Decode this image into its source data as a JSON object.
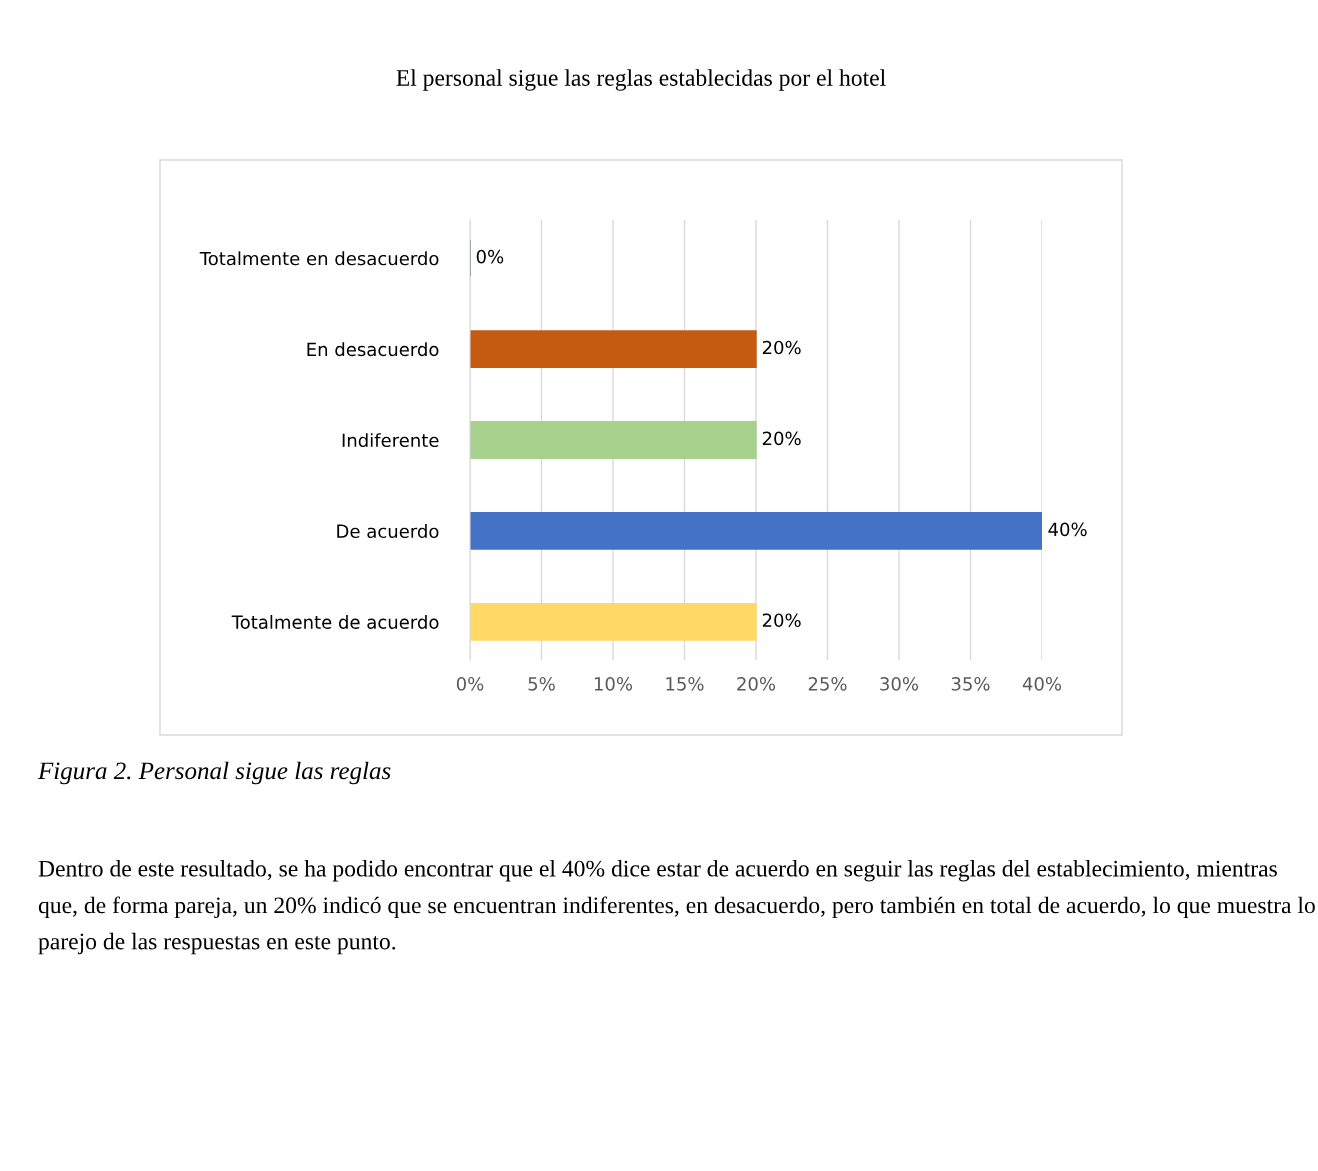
{
  "chart_data": {
    "type": "bar",
    "orientation": "horizontal",
    "title": "El personal sigue las reglas establecidas por el hotel",
    "categories": [
      "Totalmente en desacuerdo",
      "En desacuerdo",
      "Indiferente",
      "De acuerdo",
      "Totalmente de acuerdo"
    ],
    "values": [
      0,
      20,
      20,
      40,
      20
    ],
    "colors": [
      "#1f2d4d",
      "#c55a11",
      "#a9d18e",
      "#4472c4",
      "#ffd966"
    ],
    "value_labels": [
      "0%",
      "20%",
      "20%",
      "40%",
      "20%"
    ],
    "xlim": [
      0,
      40
    ],
    "xticks": [
      {
        "value": 0,
        "label": "0%"
      },
      {
        "value": 5,
        "label": "5%"
      },
      {
        "value": 10,
        "label": "10%"
      },
      {
        "value": 15,
        "label": "15%"
      },
      {
        "value": 20,
        "label": "20%"
      },
      {
        "value": 25,
        "label": "25%"
      },
      {
        "value": 30,
        "label": "30%"
      },
      {
        "value": 35,
        "label": "35%"
      },
      {
        "value": 40,
        "label": "40%"
      }
    ],
    "grid": "x",
    "legend": false,
    "annotations": [
      "Figura 2. Personal sigue las reglas",
      "Dentro de este resultado, se ha podido encontrar que el 40% dice estar de acuerdo en seguir las reglas del establecimiento, mientras que, de forma pareja, un 20% indicó que se encuentran indiferentes, en desacuerdo, pero también en total de acuerdo, lo que muestra lo parejo de las respuestas en este punto."
    ]
  }
}
